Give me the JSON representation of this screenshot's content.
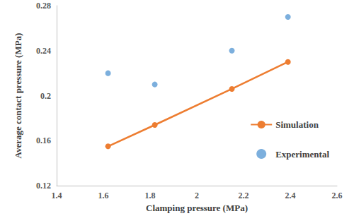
{
  "chart_data": {
    "type": "line",
    "x_label": "Clamping pressure (MPa)",
    "y_label": "Average contact pressure (MPa)",
    "x": [
      1.62,
      1.82,
      2.15,
      2.39
    ],
    "series": [
      {
        "name": "Simulation",
        "type": "line",
        "color": "#ed7d31",
        "marker": "circle",
        "line_style": "solid",
        "values": [
          0.155,
          0.174,
          0.206,
          0.23
        ]
      },
      {
        "name": "Experimental",
        "type": "scatter",
        "color": "#5b9bd5",
        "marker": "circle",
        "values": [
          0.22,
          0.21,
          0.24,
          0.27
        ]
      }
    ],
    "xlim": [
      1.4,
      2.6
    ],
    "xticks": [
      1.4,
      1.6,
      1.8,
      2,
      2.2,
      2.4,
      2.6
    ],
    "ylim": [
      0.12,
      0.28
    ],
    "yticks": [
      0.12,
      0.16,
      0.2,
      0.24,
      0.28
    ],
    "grid": false,
    "legend": "lower right"
  }
}
